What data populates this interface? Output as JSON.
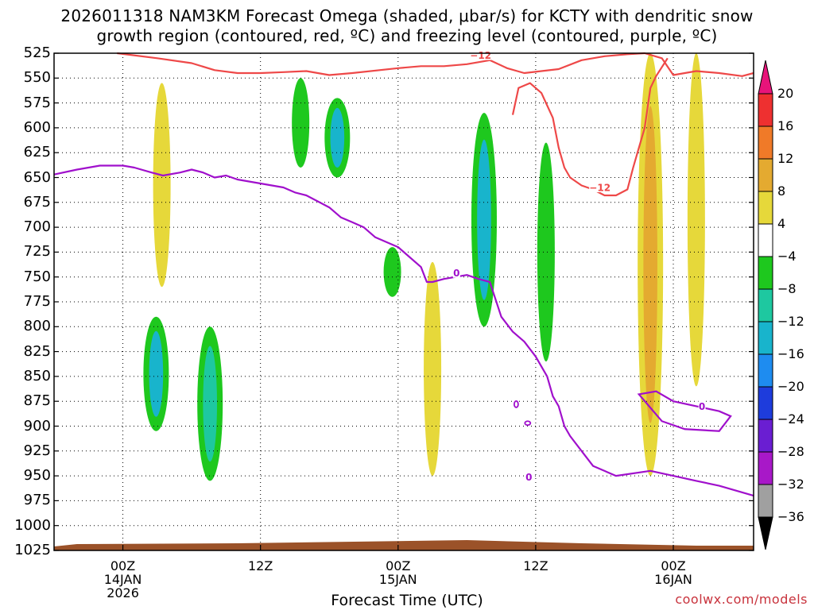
{
  "chart_data": {
    "type": "heatmap",
    "title_line1": "2026011318 NAM3KM Forecast Omega (shaded, μbar/s) for KCTY with dendritic snow",
    "title_line2": "growth region (contoured, red, ºC) and freezing level (contoured, purple, ºC)",
    "xlabel": "Forecast Time (UTC)",
    "ylabel": "",
    "credit": "coolwx.com/models",
    "y_ticks": [
      525,
      550,
      575,
      600,
      625,
      650,
      675,
      700,
      725,
      750,
      775,
      800,
      825,
      850,
      875,
      900,
      925,
      950,
      975,
      1000,
      1025
    ],
    "y_range": [
      525,
      1025
    ],
    "x_range_hours": [
      -6,
      55
    ],
    "x_ticks": [
      {
        "hour": 0,
        "lines": [
          "00Z",
          "14JAN",
          "2026"
        ]
      },
      {
        "hour": 12,
        "lines": [
          "12Z"
        ]
      },
      {
        "hour": 24,
        "lines": [
          "00Z",
          "15JAN"
        ]
      },
      {
        "hour": 36,
        "lines": [
          "12Z"
        ]
      },
      {
        "hour": 48,
        "lines": [
          "00Z",
          "16JAN"
        ]
      }
    ],
    "colorbar": {
      "labels": [
        "20",
        "16",
        "12",
        "8",
        "4",
        "−4",
        "−8",
        "−12",
        "−16",
        "−20",
        "−24",
        "−28",
        "−32",
        "−36"
      ],
      "colors": [
        "#e8147a",
        "#ee3030",
        "#f07a28",
        "#e4aa30",
        "#e6d83a",
        "#ffffff",
        "#1ec81e",
        "#1ec8a0",
        "#18b4cc",
        "#1e8cf0",
        "#1e3cdc",
        "#6a1ed2",
        "#a818c8",
        "#a0a0a0",
        "#000000"
      ]
    },
    "contour_labels": {
      "dgz_upper": "−12",
      "dgz_lower": "−12",
      "freezing_a": "0",
      "freezing_b": "0",
      "freezing_c": "0",
      "freezing_d": "0"
    },
    "series": [
      {
        "name": "dendritic_growth_upper_-12C",
        "color": "#ee4848",
        "x": [
          -0.5,
          3,
          6,
          8,
          10,
          12,
          14,
          16,
          18,
          20,
          24,
          26,
          28,
          30,
          32,
          33.5,
          35,
          36.5,
          38,
          40,
          42,
          44,
          45.5,
          47,
          48,
          50,
          52,
          54,
          55
        ],
        "y": [
          525,
          530,
          535,
          542,
          545,
          545,
          544,
          543,
          547,
          545,
          540,
          538,
          538,
          536,
          532,
          540,
          545,
          543,
          541,
          532,
          528,
          526,
          525,
          530,
          547,
          543,
          545,
          548,
          545
        ]
      },
      {
        "name": "dendritic_growth_lower_-12C",
        "color": "#ee4848",
        "x": [
          34,
          34.5,
          35.5,
          36.5,
          37.5,
          38,
          38.5,
          39,
          40,
          41,
          42,
          43,
          44,
          44.5,
          45.5,
          46,
          46.5,
          47.5
        ],
        "y": [
          587,
          560,
          555,
          565,
          590,
          620,
          640,
          650,
          658,
          662,
          668,
          668,
          662,
          640,
          600,
          560,
          548,
          530
        ]
      },
      {
        "name": "freezing_level_0C",
        "color": "#a010cc",
        "x": [
          -6,
          -4,
          -3,
          -2,
          0,
          1,
          2.5,
          3.5,
          5,
          6,
          7,
          8,
          9,
          10,
          12,
          14,
          15,
          16,
          18,
          19,
          20,
          21,
          22,
          24,
          26,
          26.5,
          27,
          28,
          29,
          30,
          31,
          32,
          33,
          34,
          35,
          36,
          37,
          37.5,
          38,
          38.5,
          39,
          40,
          41,
          43,
          46,
          48,
          50,
          52,
          55
        ],
        "y": [
          647,
          642,
          640,
          638,
          638,
          640,
          645,
          648,
          645,
          642,
          645,
          650,
          648,
          652,
          656,
          660,
          665,
          668,
          680,
          690,
          695,
          700,
          710,
          720,
          740,
          755,
          755,
          752,
          750,
          748,
          752,
          755,
          790,
          805,
          815,
          830,
          850,
          870,
          880,
          900,
          910,
          925,
          940,
          950,
          945,
          950,
          955,
          960,
          970
        ]
      }
    ],
    "omega_regions": [
      {
        "center_hour": 3.4,
        "p_top": 555,
        "p_bottom": 760,
        "value": 4
      },
      {
        "center_hour": 27,
        "p_top": 735,
        "p_bottom": 950,
        "value": 6
      },
      {
        "center_hour": 23.5,
        "p_top": 720,
        "p_bottom": 770,
        "value": -6
      },
      {
        "center_hour": 18.7,
        "p_top": 570,
        "p_bottom": 650,
        "value": -14
      },
      {
        "center_hour": 15.5,
        "p_top": 550,
        "p_bottom": 640,
        "value": -6
      },
      {
        "center_hour": 31.5,
        "p_top": 585,
        "p_bottom": 800,
        "value": -14
      },
      {
        "center_hour": 2.9,
        "p_top": 790,
        "p_bottom": 905,
        "value": -14
      },
      {
        "center_hour": 7.6,
        "p_top": 800,
        "p_bottom": 955,
        "value": -8
      },
      {
        "center_hour": 36.9,
        "p_top": 615,
        "p_bottom": 835,
        "value": -6
      },
      {
        "center_hour": 46,
        "p_top": 525,
        "p_bottom": 950,
        "value": 10
      },
      {
        "center_hour": 50,
        "p_top": 525,
        "p_bottom": 860,
        "value": 6
      }
    ],
    "terrain_color": "#9b5229"
  }
}
